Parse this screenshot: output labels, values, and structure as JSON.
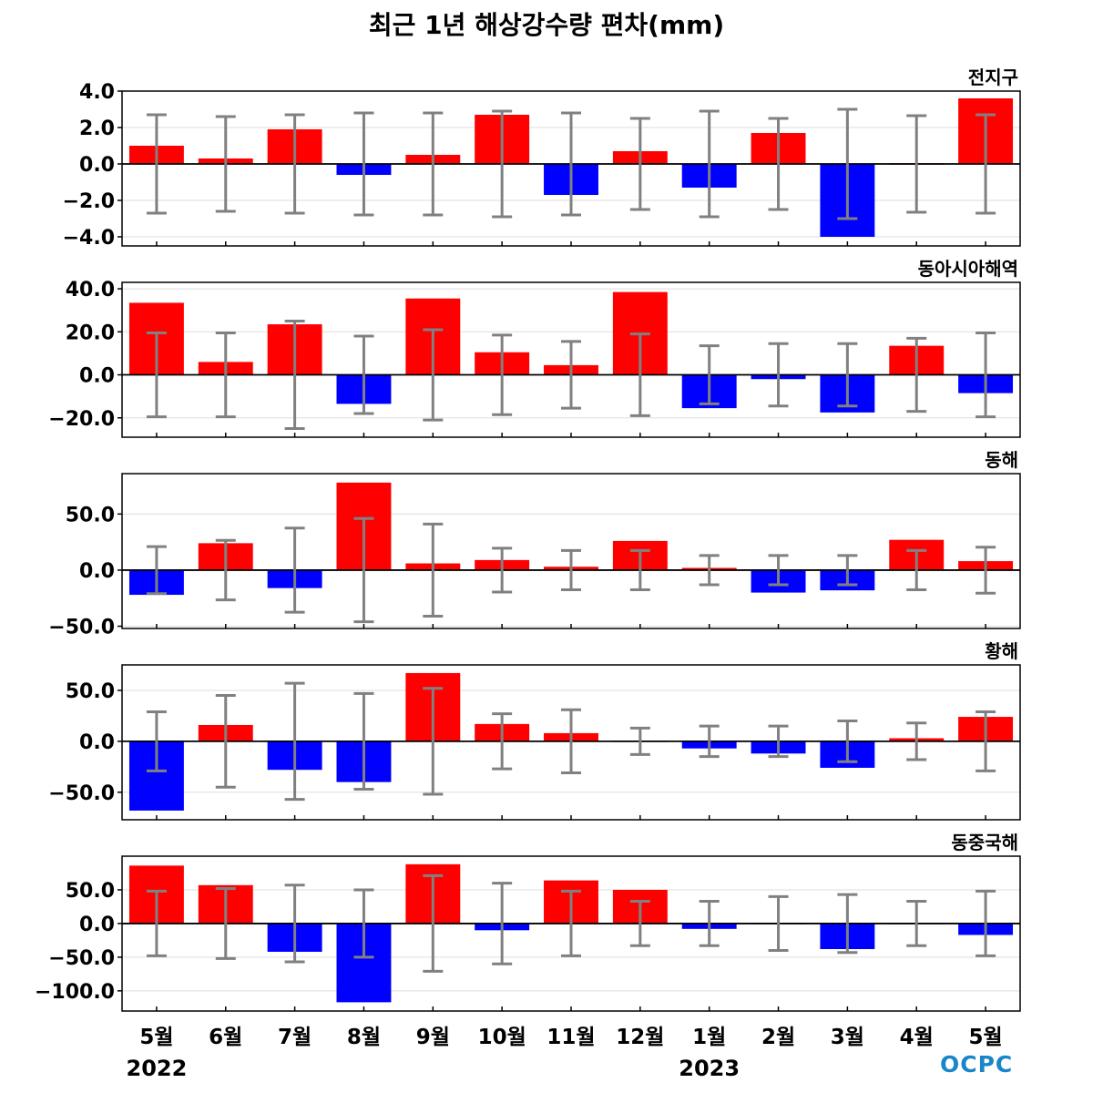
{
  "title": "최근 1년 해상강수량 편차(mm)",
  "logo": "OCPC",
  "colors": {
    "positive": "#ff0000",
    "negative": "#0000ff",
    "errorbar": "#808080",
    "grid": "#dddddd"
  },
  "chart_data": {
    "type": "bar",
    "months": [
      "5월",
      "6월",
      "7월",
      "8월",
      "9월",
      "10월",
      "11월",
      "12월",
      "1월",
      "2월",
      "3월",
      "4월",
      "5월"
    ],
    "years": [
      {
        "label": "2022",
        "under_month_index": 0
      },
      {
        "label": "2023",
        "under_month_index": 8
      }
    ],
    "panels": [
      {
        "title": "전지구",
        "ylim": [
          -4.5,
          4.0
        ],
        "yticks": [
          4.0,
          2.0,
          0.0,
          -2.0,
          -4.0
        ],
        "values": [
          1.0,
          0.3,
          1.9,
          -0.6,
          0.5,
          2.7,
          -1.7,
          0.7,
          -1.3,
          1.7,
          -4.0,
          0.0,
          3.6
        ],
        "error": [
          2.7,
          2.6,
          2.7,
          2.8,
          2.8,
          2.9,
          2.8,
          2.5,
          2.9,
          2.5,
          3.0,
          2.65,
          2.7
        ]
      },
      {
        "title": "동아시아해역",
        "ylim": [
          -29,
          43
        ],
        "yticks": [
          40.0,
          20.0,
          0.0,
          -20.0
        ],
        "values": [
          33.5,
          6.0,
          23.5,
          -13.5,
          35.5,
          10.5,
          4.5,
          38.5,
          -15.5,
          -2.0,
          -17.5,
          13.5,
          -8.5
        ],
        "error": [
          19.5,
          19.5,
          25.0,
          18.0,
          21.0,
          18.5,
          15.5,
          19.0,
          13.5,
          14.5,
          14.5,
          17.0,
          19.5
        ]
      },
      {
        "title": "동해",
        "ylim": [
          -52,
          86
        ],
        "yticks": [
          50.0,
          0.0,
          -50.0
        ],
        "values": [
          -22.0,
          24.0,
          -16.0,
          78.0,
          6.0,
          9.0,
          3.0,
          26.0,
          2.0,
          -20.0,
          -18.0,
          27.0,
          8.0
        ],
        "error": [
          21.0,
          26.5,
          37.5,
          46.0,
          41.0,
          19.5,
          17.5,
          17.5,
          13.0,
          13.0,
          13.0,
          17.5,
          20.5
        ]
      },
      {
        "title": "황해",
        "ylim": [
          -77,
          75
        ],
        "yticks": [
          50.0,
          0.0,
          -50.0
        ],
        "values": [
          -68.0,
          16.0,
          -28.0,
          -40.0,
          67.0,
          17.0,
          8.0,
          1.0,
          -7.0,
          -12.0,
          -26.0,
          3.0,
          24.0
        ],
        "error": [
          29.0,
          45.0,
          57.0,
          47.0,
          52.0,
          27.0,
          31.0,
          13.0,
          15.0,
          15.0,
          20.0,
          18.0,
          29.0
        ]
      },
      {
        "title": "동중국해",
        "ylim": [
          -130,
          100
        ],
        "yticks": [
          50.0,
          0.0,
          -50.0,
          -100.0
        ],
        "values": [
          86.0,
          57.0,
          -42.0,
          -117.0,
          88.0,
          -10.0,
          64.0,
          50.0,
          -8.0,
          -2.0,
          -38.0,
          2.0,
          -17.0
        ],
        "error": [
          48.0,
          52.0,
          57.0,
          50.0,
          71.0,
          60.0,
          48.0,
          33.0,
          33.0,
          40.0,
          43.0,
          33.0,
          48.0
        ]
      }
    ]
  }
}
